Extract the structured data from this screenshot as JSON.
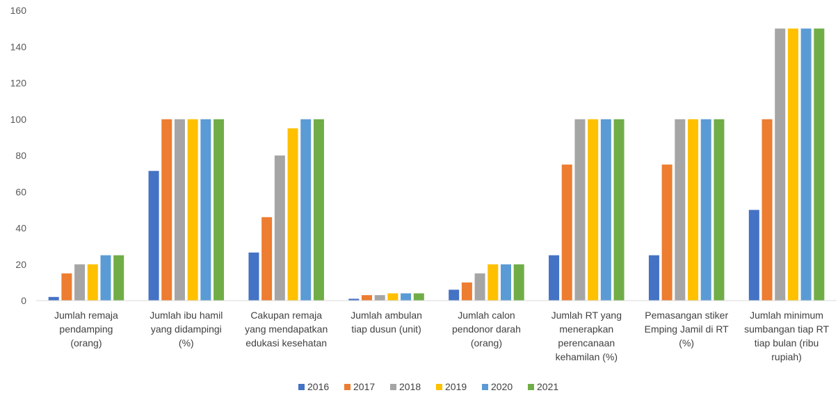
{
  "chart_data": {
    "type": "bar",
    "categories": [
      [
        "Jumlah remaja",
        "pendamping",
        "(orang)"
      ],
      [
        "Jumlah ibu hamil",
        "yang didampingi",
        "(%)"
      ],
      [
        "Cakupan remaja",
        "yang mendapatkan",
        "edukasi kesehatan"
      ],
      [
        "Jumlah ambulan",
        "tiap dusun (unit)"
      ],
      [
        "Jumlah calon",
        "pendonor darah",
        "(orang)"
      ],
      [
        "Jumlah RT yang",
        "menerapkan",
        "perencanaan",
        "kehamilan (%)"
      ],
      [
        "Pemasangan stiker",
        "Emping Jamil di RT",
        "(%)"
      ],
      [
        "Jumlah minimum",
        "sumbangan tiap RT",
        "tiap bulan (ribu",
        "rupiah)"
      ]
    ],
    "series": [
      {
        "name": "2016",
        "color": "#4472C4",
        "values": [
          2,
          71.5,
          26.5,
          1,
          6,
          25,
          25,
          50
        ]
      },
      {
        "name": "2017",
        "color": "#ED7D31",
        "values": [
          15,
          100,
          46,
          3,
          10,
          75,
          75,
          100
        ]
      },
      {
        "name": "2018",
        "color": "#A5A5A5",
        "values": [
          20,
          100,
          80,
          3,
          15,
          100,
          100,
          150
        ]
      },
      {
        "name": "2019",
        "color": "#FFC000",
        "values": [
          20,
          100,
          95,
          4,
          20,
          100,
          100,
          150
        ]
      },
      {
        "name": "2020",
        "color": "#5B9BD5",
        "values": [
          25,
          100,
          100,
          4,
          20,
          100,
          100,
          150
        ]
      },
      {
        "name": "2021",
        "color": "#70AD47",
        "values": [
          25,
          100,
          100,
          4,
          20,
          100,
          100,
          150
        ]
      }
    ],
    "y_ticks": [
      0,
      20,
      40,
      60,
      80,
      100,
      120,
      140,
      160
    ],
    "ylim": [
      0,
      160
    ],
    "grid": false,
    "legend_position": "bottom-center"
  }
}
